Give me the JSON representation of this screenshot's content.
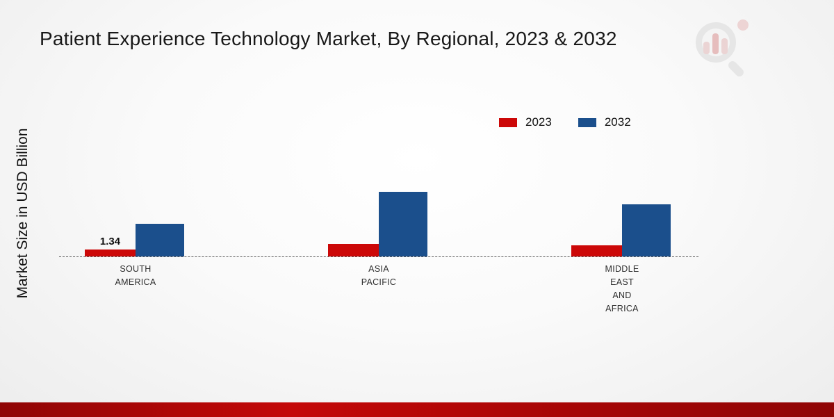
{
  "title": "Patient Experience Technology Market, By Regional, 2023 & 2032",
  "y_axis_label": "Market Size in USD Billion",
  "legend": [
    {
      "label": "2023",
      "color": "#cc0808"
    },
    {
      "label": "2032",
      "color": "#1b4f8c"
    }
  ],
  "colors": {
    "red": "#cc0808",
    "blue": "#1b4f8c",
    "bottom_strip": "#a50505",
    "baseline": "#555555"
  },
  "chart_data": {
    "type": "bar",
    "title": "Patient Experience Technology Market, By Regional, 2023 & 2032",
    "ylabel": "Market Size in USD Billion",
    "xlabel": "",
    "categories": [
      "SOUTH AMERICA",
      "ASIA PACIFIC",
      "MIDDLE EAST AND AFRICA"
    ],
    "category_lines": [
      [
        "SOUTH",
        "AMERICA"
      ],
      [
        "ASIA",
        "PACIFIC"
      ],
      [
        "MIDDLE",
        "EAST",
        "AND",
        "AFRICA"
      ]
    ],
    "series": [
      {
        "name": "2023",
        "color": "#cc0808",
        "values": [
          1.34,
          2.4,
          2.2
        ]
      },
      {
        "name": "2032",
        "color": "#1b4f8c",
        "values": [
          6.3,
          12.5,
          10.2
        ]
      }
    ],
    "annotations": [
      {
        "series_index": 0,
        "category_index": 0,
        "text": "1.34"
      }
    ],
    "ylim": [
      0,
      14
    ],
    "baseline_style": "dashed",
    "grid": false,
    "legend_position": "top-right"
  }
}
